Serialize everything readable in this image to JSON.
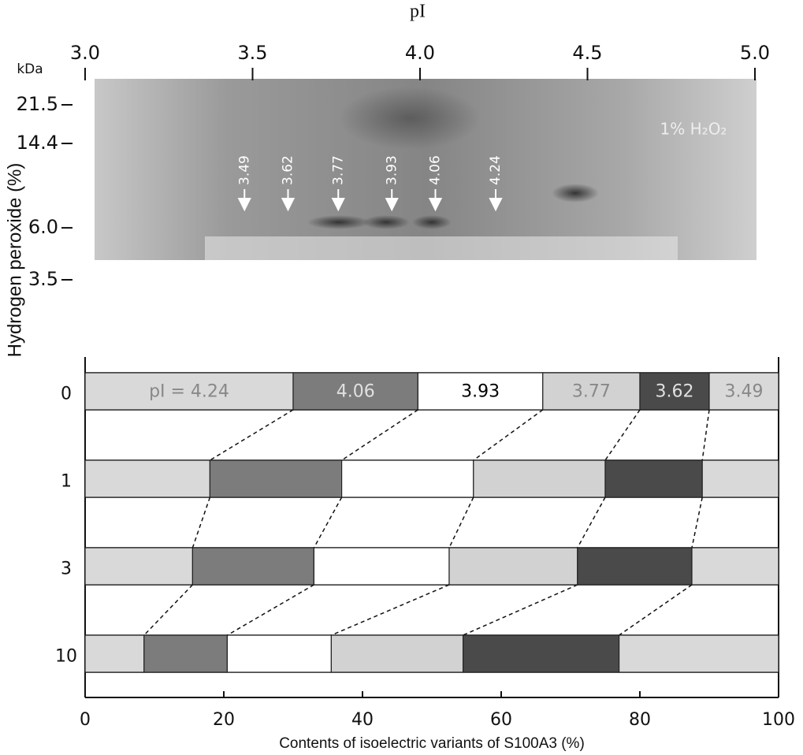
{
  "chart_data": [
    {
      "type": "gel",
      "title": "pI",
      "y_label": "kDa",
      "xlim": [
        3,
        5
      ],
      "xticks": [
        {
          "value": 3,
          "label": "3.0"
        },
        3.5,
        {
          "value": 4,
          "label": "4.0"
        },
        4.5,
        {
          "value": 5,
          "label": "5.0"
        }
      ],
      "ylim": [
        3.5,
        21.5
      ],
      "yticks": [
        21.5,
        14.4,
        {
          "value": 6,
          "label": "6.0"
        },
        3.5
      ],
      "y_scale": "log",
      "x": [
        3.49,
        3.62,
        3.77,
        3.93,
        4.06,
        4.24
      ],
      "annotation": "1% H₂O₂"
    },
    {
      "type": "barh",
      "x_label": "Contents of isoelectric variants of S100A3 (%)",
      "y_label": "Hydrogen peroxide (%)",
      "categories": [
        "0",
        "1",
        "3",
        "10"
      ],
      "series": [
        {
          "name": "pI = 4.24",
          "color": "#d9d9d9",
          "values": [
            30,
            18,
            15.5,
            8.5
          ]
        },
        {
          "name": "4.06",
          "color": "#7c7c7c",
          "values": [
            18,
            19,
            17.5,
            12
          ]
        },
        {
          "name": "3.93",
          "color": "#ffffff",
          "values": [
            18,
            19,
            19.5,
            15
          ]
        },
        {
          "name": "3.77",
          "color": "#d2d2d2",
          "values": [
            14,
            19,
            18.5,
            19
          ]
        },
        {
          "name": "3.62",
          "color": "#4a4a4a",
          "values": [
            10,
            14,
            16.5,
            22.5
          ]
        },
        {
          "name": "3.49",
          "color": "#d9d9d9",
          "values": [
            10,
            11,
            12.5,
            23
          ]
        }
      ],
      "xlim": [
        0,
        100
      ],
      "xticks": [
        0,
        20,
        40,
        60,
        80,
        100
      ]
    }
  ]
}
